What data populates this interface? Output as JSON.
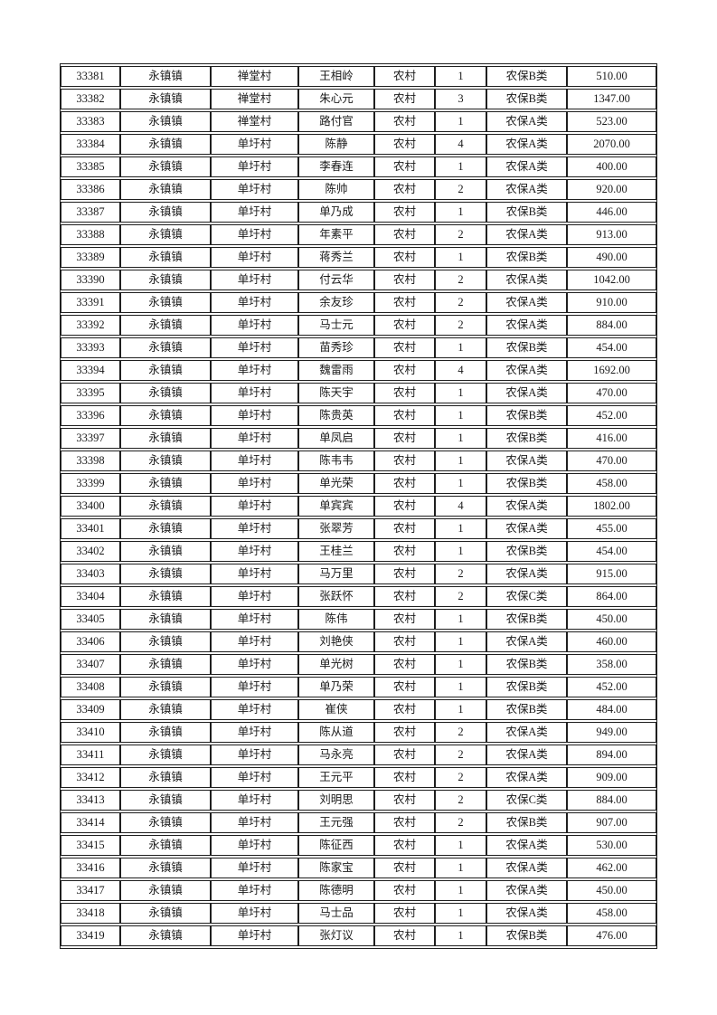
{
  "page": {
    "background": "#ffffff"
  },
  "colors": {
    "border": "#1f1f1f",
    "text": "#1a1a1a"
  },
  "table": {
    "cell_names": [
      "cell-serial-number",
      "cell-town",
      "cell-village",
      "cell-person-name",
      "cell-residence-type",
      "cell-count",
      "cell-insurance-category",
      "cell-amount"
    ],
    "rows": [
      [
        "33381",
        "永镇镇",
        "禅堂村",
        "王相岭",
        "农村",
        "1",
        "农保B类",
        "510.00"
      ],
      [
        "33382",
        "永镇镇",
        "禅堂村",
        "朱心元",
        "农村",
        "3",
        "农保B类",
        "1347.00"
      ],
      [
        "33383",
        "永镇镇",
        "禅堂村",
        "路付官",
        "农村",
        "1",
        "农保A类",
        "523.00"
      ],
      [
        "33384",
        "永镇镇",
        "单圩村",
        "陈静",
        "农村",
        "4",
        "农保A类",
        "2070.00"
      ],
      [
        "33385",
        "永镇镇",
        "单圩村",
        "李春连",
        "农村",
        "1",
        "农保A类",
        "400.00"
      ],
      [
        "33386",
        "永镇镇",
        "单圩村",
        "陈帅",
        "农村",
        "2",
        "农保A类",
        "920.00"
      ],
      [
        "33387",
        "永镇镇",
        "单圩村",
        "单乃成",
        "农村",
        "1",
        "农保B类",
        "446.00"
      ],
      [
        "33388",
        "永镇镇",
        "单圩村",
        "年素平",
        "农村",
        "2",
        "农保A类",
        "913.00"
      ],
      [
        "33389",
        "永镇镇",
        "单圩村",
        "蒋秀兰",
        "农村",
        "1",
        "农保B类",
        "490.00"
      ],
      [
        "33390",
        "永镇镇",
        "单圩村",
        "付云华",
        "农村",
        "2",
        "农保A类",
        "1042.00"
      ],
      [
        "33391",
        "永镇镇",
        "单圩村",
        "余友珍",
        "农村",
        "2",
        "农保A类",
        "910.00"
      ],
      [
        "33392",
        "永镇镇",
        "单圩村",
        "马士元",
        "农村",
        "2",
        "农保A类",
        "884.00"
      ],
      [
        "33393",
        "永镇镇",
        "单圩村",
        "苗秀珍",
        "农村",
        "1",
        "农保B类",
        "454.00"
      ],
      [
        "33394",
        "永镇镇",
        "单圩村",
        "魏雷雨",
        "农村",
        "4",
        "农保A类",
        "1692.00"
      ],
      [
        "33395",
        "永镇镇",
        "单圩村",
        "陈天宇",
        "农村",
        "1",
        "农保A类",
        "470.00"
      ],
      [
        "33396",
        "永镇镇",
        "单圩村",
        "陈贵英",
        "农村",
        "1",
        "农保B类",
        "452.00"
      ],
      [
        "33397",
        "永镇镇",
        "单圩村",
        "单凤启",
        "农村",
        "1",
        "农保B类",
        "416.00"
      ],
      [
        "33398",
        "永镇镇",
        "单圩村",
        "陈韦韦",
        "农村",
        "1",
        "农保A类",
        "470.00"
      ],
      [
        "33399",
        "永镇镇",
        "单圩村",
        "单光荣",
        "农村",
        "1",
        "农保B类",
        "458.00"
      ],
      [
        "33400",
        "永镇镇",
        "单圩村",
        "单宾宾",
        "农村",
        "4",
        "农保A类",
        "1802.00"
      ],
      [
        "33401",
        "永镇镇",
        "单圩村",
        "张翠芳",
        "农村",
        "1",
        "农保A类",
        "455.00"
      ],
      [
        "33402",
        "永镇镇",
        "单圩村",
        "王桂兰",
        "农村",
        "1",
        "农保B类",
        "454.00"
      ],
      [
        "33403",
        "永镇镇",
        "单圩村",
        "马万里",
        "农村",
        "2",
        "农保A类",
        "915.00"
      ],
      [
        "33404",
        "永镇镇",
        "单圩村",
        "张跃怀",
        "农村",
        "2",
        "农保C类",
        "864.00"
      ],
      [
        "33405",
        "永镇镇",
        "单圩村",
        "陈伟",
        "农村",
        "1",
        "农保B类",
        "450.00"
      ],
      [
        "33406",
        "永镇镇",
        "单圩村",
        "刘艳侠",
        "农村",
        "1",
        "农保A类",
        "460.00"
      ],
      [
        "33407",
        "永镇镇",
        "单圩村",
        "单光树",
        "农村",
        "1",
        "农保B类",
        "358.00"
      ],
      [
        "33408",
        "永镇镇",
        "单圩村",
        "单乃荣",
        "农村",
        "1",
        "农保B类",
        "452.00"
      ],
      [
        "33409",
        "永镇镇",
        "单圩村",
        "崔侠",
        "农村",
        "1",
        "农保B类",
        "484.00"
      ],
      [
        "33410",
        "永镇镇",
        "单圩村",
        "陈从道",
        "农村",
        "2",
        "农保A类",
        "949.00"
      ],
      [
        "33411",
        "永镇镇",
        "单圩村",
        "马永亮",
        "农村",
        "2",
        "农保A类",
        "894.00"
      ],
      [
        "33412",
        "永镇镇",
        "单圩村",
        "王元平",
        "农村",
        "2",
        "农保A类",
        "909.00"
      ],
      [
        "33413",
        "永镇镇",
        "单圩村",
        "刘明思",
        "农村",
        "2",
        "农保C类",
        "884.00"
      ],
      [
        "33414",
        "永镇镇",
        "单圩村",
        "王元强",
        "农村",
        "2",
        "农保B类",
        "907.00"
      ],
      [
        "33415",
        "永镇镇",
        "单圩村",
        "陈征西",
        "农村",
        "1",
        "农保A类",
        "530.00"
      ],
      [
        "33416",
        "永镇镇",
        "单圩村",
        "陈家宝",
        "农村",
        "1",
        "农保A类",
        "462.00"
      ],
      [
        "33417",
        "永镇镇",
        "单圩村",
        "陈德明",
        "农村",
        "1",
        "农保A类",
        "450.00"
      ],
      [
        "33418",
        "永镇镇",
        "单圩村",
        "马士品",
        "农村",
        "1",
        "农保A类",
        "458.00"
      ],
      [
        "33419",
        "永镇镇",
        "单圩村",
        "张灯议",
        "农村",
        "1",
        "农保B类",
        "476.00"
      ]
    ]
  }
}
